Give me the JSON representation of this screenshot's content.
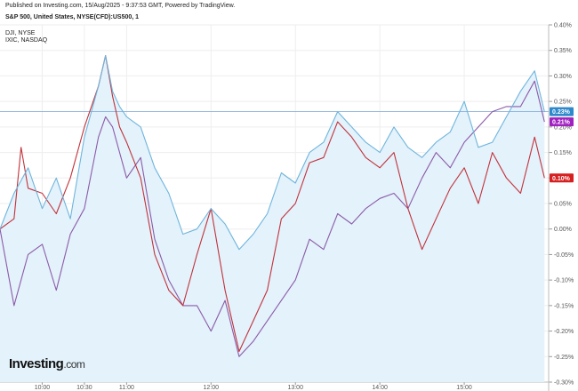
{
  "header": {
    "published": "Published on Investing.com, 15/Aug/2025 - 9:37:53 GMT, Powered by TradingView.",
    "title": "S&P 500, United States, NYSE(CFD):US500, 1",
    "legend_dji": "DJI, NYSE",
    "legend_ixic": "IXIC, NASDAQ"
  },
  "brand": {
    "name": "Investing",
    "suffix": ".com"
  },
  "colors": {
    "spx": "#6fb5dc",
    "spx_fill": "#e3f2fb",
    "dji": "#c2323b",
    "ixic": "#8c5aa8",
    "badge_spx": "#2e88cc",
    "badge_ixic": "#a020c0",
    "badge_dji": "#d62020",
    "grid": "#eeeeee",
    "axis_text": "#555555",
    "ref_line": "#7aa6d6"
  },
  "chart_data": {
    "type": "line",
    "x_domain": [
      "09:30",
      "16:00"
    ],
    "y_domain": [
      -0.3,
      0.4
    ],
    "y_unit": "%",
    "x_ticks": [
      "10:00",
      "10:30",
      "11:00",
      "12:00",
      "13:00",
      "14:00",
      "15:00"
    ],
    "y_ticks": [
      "0.40%",
      "0.35%",
      "0.30%",
      "0.25%",
      "0.20%",
      "0.15%",
      "0.10%",
      "0.05%",
      "0.00%",
      "-0.05%",
      "-0.10%",
      "-0.15%",
      "-0.20%",
      "-0.25%",
      "-0.30%"
    ],
    "reference_line": 0.23,
    "series": [
      {
        "name": "S&P 500",
        "role": "spx",
        "last_label": "0.23%",
        "x": [
          "09:30",
          "09:40",
          "09:50",
          "10:00",
          "10:10",
          "10:20",
          "10:30",
          "10:40",
          "10:45",
          "10:50",
          "10:55",
          "11:00",
          "11:10",
          "11:20",
          "11:30",
          "11:40",
          "11:50",
          "12:00",
          "12:10",
          "12:20",
          "12:30",
          "12:40",
          "12:50",
          "13:00",
          "13:10",
          "13:20",
          "13:30",
          "13:40",
          "13:50",
          "14:00",
          "14:10",
          "14:20",
          "14:30",
          "14:40",
          "14:50",
          "15:00",
          "15:10",
          "15:20",
          "15:30",
          "15:40",
          "15:50",
          "15:57"
        ],
        "values": [
          0.0,
          0.07,
          0.12,
          0.04,
          0.1,
          0.02,
          0.18,
          0.28,
          0.34,
          0.27,
          0.24,
          0.22,
          0.2,
          0.12,
          0.07,
          -0.01,
          0.0,
          0.04,
          0.01,
          -0.04,
          -0.01,
          0.03,
          0.11,
          0.09,
          0.15,
          0.17,
          0.23,
          0.2,
          0.17,
          0.15,
          0.2,
          0.16,
          0.14,
          0.17,
          0.19,
          0.25,
          0.16,
          0.17,
          0.22,
          0.27,
          0.31,
          0.23
        ]
      },
      {
        "name": "DJI, NYSE",
        "role": "dji",
        "last_label": "0.10%",
        "x": [
          "09:30",
          "09:40",
          "09:45",
          "09:50",
          "10:00",
          "10:10",
          "10:20",
          "10:30",
          "10:40",
          "10:45",
          "10:50",
          "10:55",
          "11:00",
          "11:10",
          "11:20",
          "11:30",
          "11:40",
          "11:50",
          "12:00",
          "12:10",
          "12:20",
          "12:30",
          "12:40",
          "12:50",
          "13:00",
          "13:10",
          "13:20",
          "13:30",
          "13:40",
          "13:50",
          "14:00",
          "14:10",
          "14:20",
          "14:30",
          "14:40",
          "14:50",
          "15:00",
          "15:10",
          "15:20",
          "15:30",
          "15:40",
          "15:50",
          "15:57"
        ],
        "values": [
          0.0,
          0.02,
          0.16,
          0.08,
          0.07,
          0.03,
          0.1,
          0.2,
          0.28,
          0.34,
          0.26,
          0.2,
          0.17,
          0.1,
          -0.05,
          -0.12,
          -0.15,
          -0.05,
          0.04,
          -0.12,
          -0.24,
          -0.18,
          -0.12,
          0.02,
          0.05,
          0.13,
          0.14,
          0.21,
          0.18,
          0.14,
          0.12,
          0.15,
          0.04,
          -0.04,
          0.02,
          0.08,
          0.12,
          0.05,
          0.15,
          0.1,
          0.07,
          0.18,
          0.1
        ]
      },
      {
        "name": "IXIC, NASDAQ",
        "role": "ixic",
        "last_label": "0.21%",
        "x": [
          "09:30",
          "09:40",
          "09:50",
          "10:00",
          "10:10",
          "10:20",
          "10:30",
          "10:40",
          "10:45",
          "10:50",
          "10:55",
          "11:00",
          "11:10",
          "11:20",
          "11:30",
          "11:40",
          "11:50",
          "12:00",
          "12:10",
          "12:20",
          "12:30",
          "12:40",
          "12:50",
          "13:00",
          "13:10",
          "13:20",
          "13:30",
          "13:40",
          "13:50",
          "14:00",
          "14:10",
          "14:20",
          "14:30",
          "14:40",
          "14:50",
          "15:00",
          "15:10",
          "15:20",
          "15:30",
          "15:40",
          "15:50",
          "15:57"
        ],
        "values": [
          0.0,
          -0.15,
          -0.05,
          -0.03,
          -0.12,
          -0.01,
          0.04,
          0.18,
          0.22,
          0.2,
          0.15,
          0.1,
          0.14,
          -0.02,
          -0.1,
          -0.15,
          -0.15,
          -0.2,
          -0.14,
          -0.25,
          -0.22,
          -0.18,
          -0.14,
          -0.1,
          -0.02,
          -0.04,
          0.03,
          0.01,
          0.04,
          0.06,
          0.07,
          0.04,
          0.1,
          0.15,
          0.12,
          0.17,
          0.2,
          0.23,
          0.24,
          0.24,
          0.29,
          0.21
        ]
      }
    ],
    "grid": true,
    "legend_position": "top-left"
  }
}
